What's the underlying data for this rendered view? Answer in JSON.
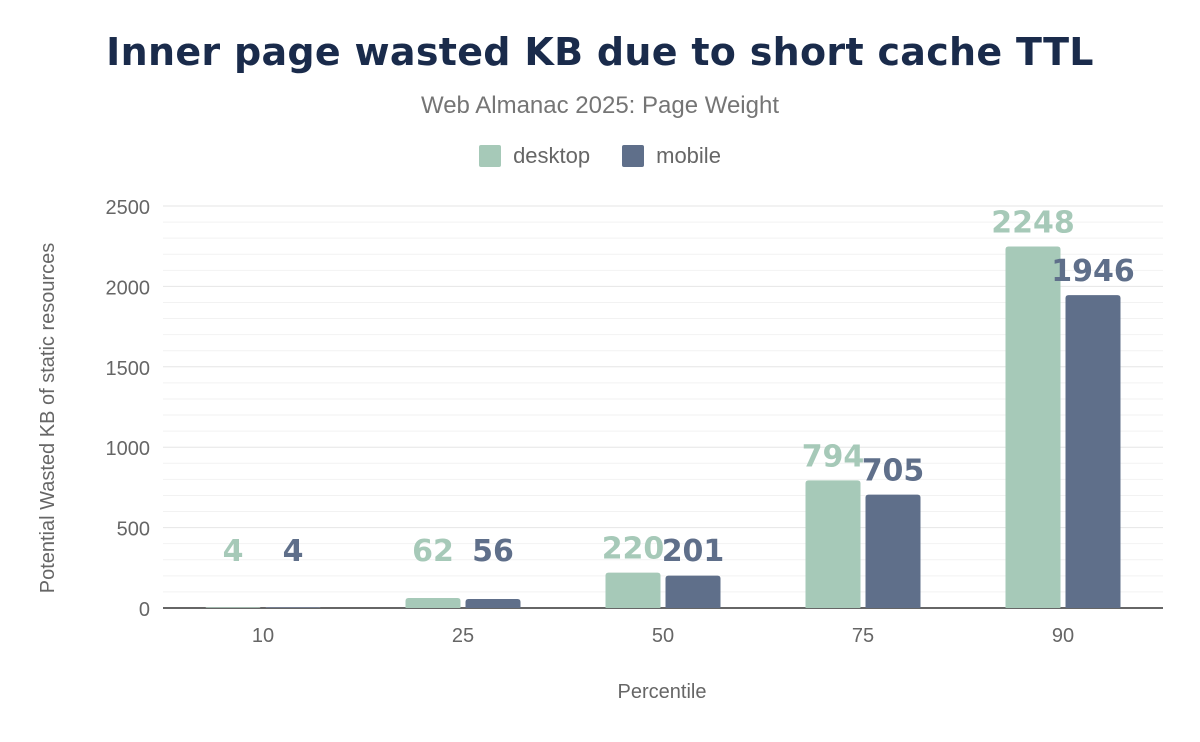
{
  "chart_data": {
    "type": "bar",
    "title": "Inner page wasted KB due to short cache TTL",
    "subtitle": "Web Almanac 2025: Page Weight",
    "xlabel": "Percentile",
    "ylabel": "Potential Wasted KB of static resources",
    "categories": [
      "10",
      "25",
      "50",
      "75",
      "90"
    ],
    "series": [
      {
        "name": "desktop",
        "color": "#a6c9b8",
        "values": [
          4,
          62,
          220,
          794,
          2248
        ]
      },
      {
        "name": "mobile",
        "color": "#5f6f8a",
        "values": [
          4,
          56,
          201,
          705,
          1946
        ]
      }
    ],
    "ylim": [
      0,
      2500
    ],
    "yticks": [
      0,
      500,
      1000,
      1500,
      2000,
      2500
    ],
    "grid": true,
    "legend_position": "top"
  }
}
